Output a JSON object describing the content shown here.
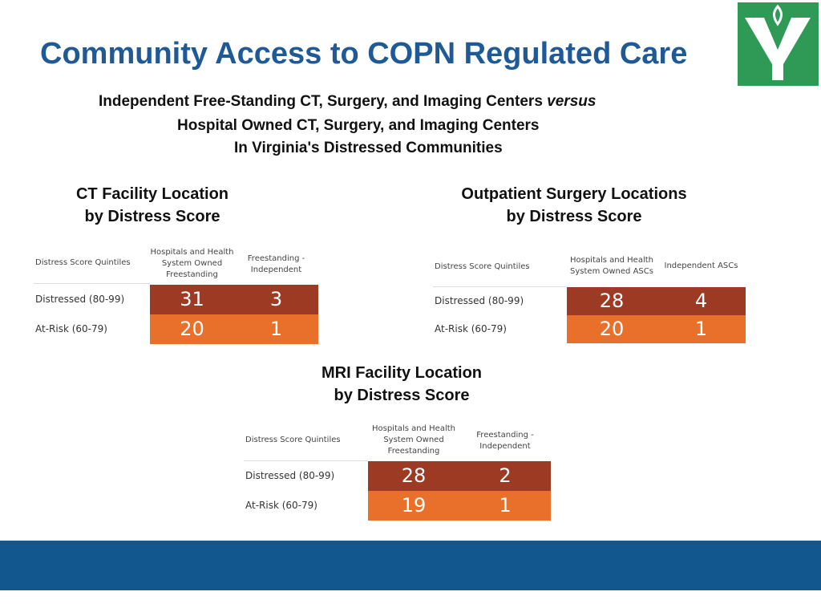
{
  "title": "Community Access to COPN Regulated Care",
  "subtitle": {
    "line1_main": "Independent Free-Standing CT, Surgery, and Imaging Centers ",
    "line1_emph": "versus",
    "line2": "Hospital Owned CT, Surgery, and Imaging Centers",
    "line3": "In Virginia's Distressed Communities"
  },
  "colors": {
    "title": "#1f5a96",
    "distressed": "#9c3a24",
    "at_risk": "#e8702a",
    "footer": "#13578f",
    "logo": "#2e9a56"
  },
  "chart_data": [
    {
      "type": "table",
      "title_line1": "CT Facility Location",
      "title_line2": "by Distress Score",
      "row_header": "Distress Score Quintiles",
      "columns": [
        "Hospitals and Health System Owned Freestanding",
        "Freestanding - Independent"
      ],
      "column_lines": [
        [
          "Hospitals and Health",
          "System Owned",
          "Freestanding"
        ],
        [
          "Freestanding -",
          "Independent"
        ]
      ],
      "rows": [
        {
          "label": "Distressed (80-99)",
          "values": [
            31,
            3
          ]
        },
        {
          "label": "At-Risk (60-79)",
          "values": [
            20,
            1
          ]
        }
      ]
    },
    {
      "type": "table",
      "title_line1": "Outpatient Surgery Locations",
      "title_line2": "by Distress Score",
      "row_header": "Distress Score Quintiles",
      "columns": [
        "Hospitals and Health System Owned ASCs",
        "Independent ASCs"
      ],
      "column_lines": [
        [
          "Hospitals and Health",
          "System Owned ASCs"
        ],
        [
          "Independent ASCs"
        ]
      ],
      "rows": [
        {
          "label": "Distressed (80-99)",
          "values": [
            28,
            4
          ]
        },
        {
          "label": "At-Risk (60-79)",
          "values": [
            20,
            1
          ]
        }
      ]
    },
    {
      "type": "table",
      "title_line1": "MRI Facility Location",
      "title_line2": "by Distress Score",
      "row_header": "Distress Score Quintiles",
      "columns": [
        "Hospitals and Health System Owned Freestanding",
        "Freestanding - Independent"
      ],
      "column_lines": [
        [
          "Hospitals and Health",
          "System Owned",
          "Freestanding"
        ],
        [
          "Freestanding -",
          "Independent"
        ]
      ],
      "rows": [
        {
          "label": "Distressed (80-99)",
          "values": [
            28,
            2
          ]
        },
        {
          "label": "At-Risk (60-79)",
          "values": [
            19,
            1
          ]
        }
      ]
    }
  ]
}
